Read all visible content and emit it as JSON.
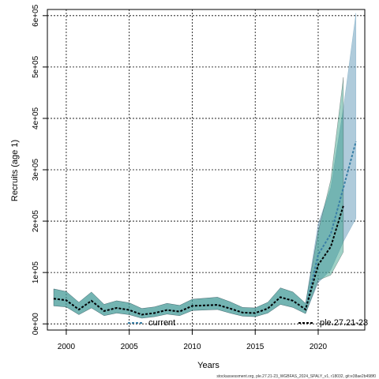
{
  "chart_data": {
    "type": "line",
    "title": "",
    "xlabel": "Years",
    "ylabel": "Recruits (age 1)",
    "xlim": [
      1998.5,
      2023.7
    ],
    "ylim": [
      -12000,
      612000
    ],
    "x_ticks": [
      2000,
      2005,
      2010,
      2015,
      2020
    ],
    "x_tick_labels": [
      "2000",
      "2005",
      "2010",
      "2015",
      "2020"
    ],
    "y_ticks": [
      0,
      100000,
      200000,
      300000,
      400000,
      500000,
      600000
    ],
    "y_tick_labels": [
      "0e+00",
      "1e+05",
      "2e+05",
      "3e+05",
      "4e+05",
      "5e+05",
      "6e+05"
    ],
    "grid": true,
    "legend_position": "bottom",
    "series": [
      {
        "name": "current",
        "color": "#3a7fa6",
        "band_color": "#5f97b8",
        "x": [
          1999,
          2000,
          2001,
          2002,
          2003,
          2004,
          2005,
          2006,
          2007,
          2008,
          2009,
          2010,
          2011,
          2012,
          2013,
          2014,
          2015,
          2016,
          2017,
          2018,
          2019,
          2020,
          2021,
          2022,
          2023
        ],
        "values": [
          49000,
          46000,
          28000,
          45000,
          25000,
          31000,
          27000,
          18000,
          21000,
          27000,
          24000,
          35000,
          36000,
          37000,
          30000,
          22000,
          21000,
          30000,
          52000,
          45000,
          28000,
          135000,
          175000,
          265000,
          355000
        ],
        "lower": [
          35000,
          33000,
          18000,
          31000,
          16000,
          21000,
          18000,
          11000,
          14000,
          19000,
          16000,
          26000,
          27000,
          28000,
          21000,
          15000,
          14000,
          21000,
          38000,
          32000,
          20000,
          80000,
          105000,
          160000,
          205000
        ],
        "upper": [
          68000,
          63000,
          42000,
          62000,
          38000,
          45000,
          41000,
          30000,
          33000,
          40000,
          36000,
          48000,
          50000,
          52000,
          43000,
          32000,
          31000,
          42000,
          70000,
          62000,
          40000,
          195000,
          265000,
          420000,
          605000
        ]
      },
      {
        "name": "ple.27.21-23",
        "color": "#000000",
        "band_color": "#2a9a80",
        "x": [
          1999,
          2000,
          2001,
          2002,
          2003,
          2004,
          2005,
          2006,
          2007,
          2008,
          2009,
          2010,
          2011,
          2012,
          2013,
          2014,
          2015,
          2016,
          2017,
          2018,
          2019,
          2020,
          2021,
          2022
        ],
        "values": [
          49000,
          46000,
          28000,
          45000,
          25000,
          31000,
          27000,
          18000,
          21000,
          27000,
          24000,
          35000,
          36000,
          37000,
          30000,
          22000,
          21000,
          30000,
          52000,
          45000,
          28000,
          115000,
          150000,
          230000
        ],
        "lower": [
          35000,
          33000,
          18000,
          31000,
          16000,
          21000,
          18000,
          11000,
          14000,
          19000,
          16000,
          26000,
          27000,
          28000,
          21000,
          15000,
          14000,
          21000,
          38000,
          32000,
          20000,
          85000,
          95000,
          140000
        ],
        "upper": [
          68000,
          63000,
          42000,
          62000,
          38000,
          45000,
          41000,
          30000,
          33000,
          40000,
          36000,
          48000,
          50000,
          52000,
          43000,
          32000,
          31000,
          42000,
          70000,
          62000,
          40000,
          180000,
          280000,
          480000
        ]
      }
    ]
  },
  "legend": {
    "current_label": "current",
    "stock_label": "ple.27.21-23"
  },
  "footer": "stockassessment.org, ple.27.21-23_WGBFAS_2024_SPALY_v1, r18032, git:e38ae2b498f0"
}
